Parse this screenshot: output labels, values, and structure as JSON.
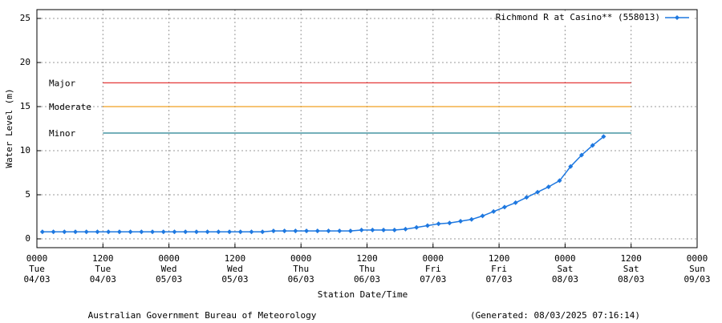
{
  "chart_data": {
    "type": "line",
    "ylabel": "Water Level (m)",
    "xlabel": "Station Date/Time",
    "footer_left": "Australian Government Bureau of Meteorology",
    "footer_right": "(Generated: 08/03/2025 07:16:14)",
    "ylim": [
      -1,
      26
    ],
    "yticks": [
      0,
      5,
      10,
      15,
      20,
      25
    ],
    "xlim": [
      "04/03 0000",
      "09/03 0000"
    ],
    "xticks": [
      {
        "value": "04/03 0000",
        "label": [
          "0000",
          "Tue",
          "04/03"
        ]
      },
      {
        "value": "04/03 1200",
        "label": [
          "1200",
          "Tue",
          "04/03"
        ]
      },
      {
        "value": "05/03 0000",
        "label": [
          "0000",
          "Wed",
          "05/03"
        ]
      },
      {
        "value": "05/03 1200",
        "label": [
          "1200",
          "Wed",
          "05/03"
        ]
      },
      {
        "value": "06/03 0000",
        "label": [
          "0000",
          "Thu",
          "06/03"
        ]
      },
      {
        "value": "06/03 1200",
        "label": [
          "1200",
          "Thu",
          "06/03"
        ]
      },
      {
        "value": "07/03 0000",
        "label": [
          "0000",
          "Fri",
          "07/03"
        ]
      },
      {
        "value": "07/03 1200",
        "label": [
          "1200",
          "Fri",
          "07/03"
        ]
      },
      {
        "value": "08/03 0000",
        "label": [
          "0000",
          "Sat",
          "08/03"
        ]
      },
      {
        "value": "08/03 1200",
        "label": [
          "1200",
          "Sat",
          "08/03"
        ]
      },
      {
        "value": "09/03 0000",
        "label": [
          "0000",
          "Sun",
          "09/03"
        ]
      }
    ],
    "grid": true,
    "legend": "top-right",
    "thresholds": [
      {
        "label": "Major",
        "value": 17.7,
        "color": "#e02020",
        "from": "04/03 1200",
        "to": "08/03 1200"
      },
      {
        "label": "Moderate",
        "value": 15.0,
        "color": "#f0a020",
        "from": "04/03 1200",
        "to": "08/03 1200"
      },
      {
        "label": "Minor",
        "value": 12.0,
        "color": "#208090",
        "from": "04/03 1200",
        "to": "08/03 1200"
      }
    ],
    "x": [
      "04/03 0100",
      "04/03 0300",
      "04/03 0500",
      "04/03 0700",
      "04/03 0900",
      "04/03 1100",
      "04/03 1300",
      "04/03 1500",
      "04/03 1700",
      "04/03 1900",
      "04/03 2100",
      "04/03 2300",
      "05/03 0100",
      "05/03 0300",
      "05/03 0500",
      "05/03 0700",
      "05/03 0900",
      "05/03 1100",
      "05/03 1300",
      "05/03 1500",
      "05/03 1700",
      "05/03 1900",
      "05/03 2100",
      "05/03 2300",
      "06/03 0100",
      "06/03 0300",
      "06/03 0500",
      "06/03 0700",
      "06/03 0900",
      "06/03 1100",
      "06/03 1300",
      "06/03 1500",
      "06/03 1700",
      "06/03 1900",
      "06/03 2100",
      "06/03 2300",
      "07/03 0100",
      "07/03 0300",
      "07/03 0500",
      "07/03 0700",
      "07/03 0900",
      "07/03 1100",
      "07/03 1300",
      "07/03 1500",
      "07/03 1700",
      "07/03 1900",
      "07/03 2100",
      "07/03 2300",
      "08/03 0100",
      "08/03 0300",
      "08/03 0500",
      "08/03 0700"
    ],
    "series": [
      {
        "name": "Richmond R at Casino** (558013)",
        "color": "#1e78e0",
        "values": [
          0.8,
          0.8,
          0.8,
          0.8,
          0.8,
          0.8,
          0.8,
          0.8,
          0.8,
          0.8,
          0.8,
          0.8,
          0.8,
          0.8,
          0.8,
          0.8,
          0.8,
          0.8,
          0.8,
          0.8,
          0.8,
          0.9,
          0.9,
          0.9,
          0.9,
          0.9,
          0.9,
          0.9,
          0.9,
          1.0,
          1.0,
          1.0,
          1.0,
          1.1,
          1.3,
          1.5,
          1.7,
          1.8,
          2.0,
          2.2,
          2.6,
          3.1,
          3.6,
          4.1,
          4.7,
          5.3,
          5.9,
          6.6,
          8.2,
          9.5,
          10.6,
          11.6
        ]
      }
    ]
  }
}
